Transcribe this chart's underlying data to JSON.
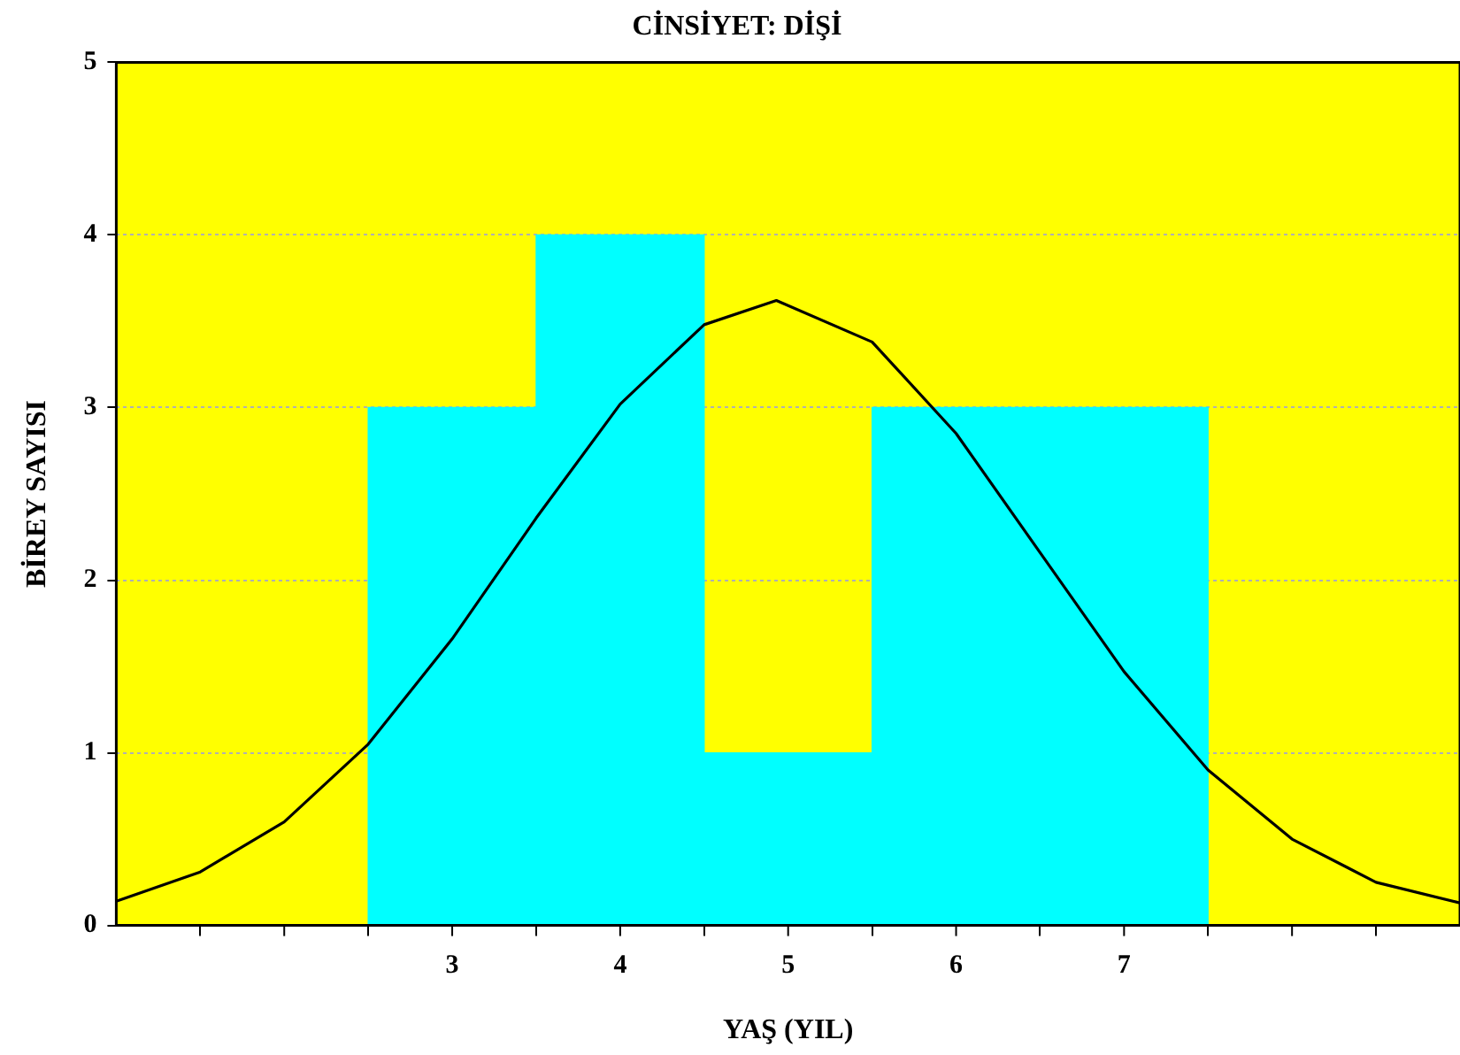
{
  "chart_data": {
    "type": "histogram",
    "title": "CİNSİYET: DİŞİ",
    "xlabel": "YAŞ (YIL)",
    "ylabel": "BİREY SAYISI",
    "bins": [
      2.5,
      3.5,
      4.5,
      5.5,
      6.5,
      7.5
    ],
    "values": [
      3,
      4,
      1,
      3,
      3
    ],
    "color": "#00ffff",
    "series": [
      {
        "type": "line",
        "color": "#000000",
        "x": [
          1,
          1.5,
          2,
          2.5,
          3,
          3.5,
          4,
          4.5,
          4.93,
          5.5,
          6,
          6.5,
          7,
          7.5,
          8,
          8.5,
          9
        ],
        "values": [
          0.14,
          0.31,
          0.6,
          1.05,
          1.66,
          2.36,
          3.02,
          3.48,
          3.62,
          3.38,
          2.85,
          2.16,
          1.47,
          0.9,
          0.5,
          0.25,
          0.13
        ]
      }
    ],
    "xlim": [
      1,
      9
    ],
    "xticks": [
      {
        "value": 2,
        "label": null
      },
      3,
      4,
      5,
      6,
      7,
      {
        "value": 8,
        "label": null
      }
    ],
    "ylim": [
      0,
      5
    ],
    "yticks": [
      0,
      1,
      2,
      3,
      4,
      5
    ],
    "grid": "y",
    "legend": false,
    "marker": "none",
    "line_style": "solid"
  }
}
